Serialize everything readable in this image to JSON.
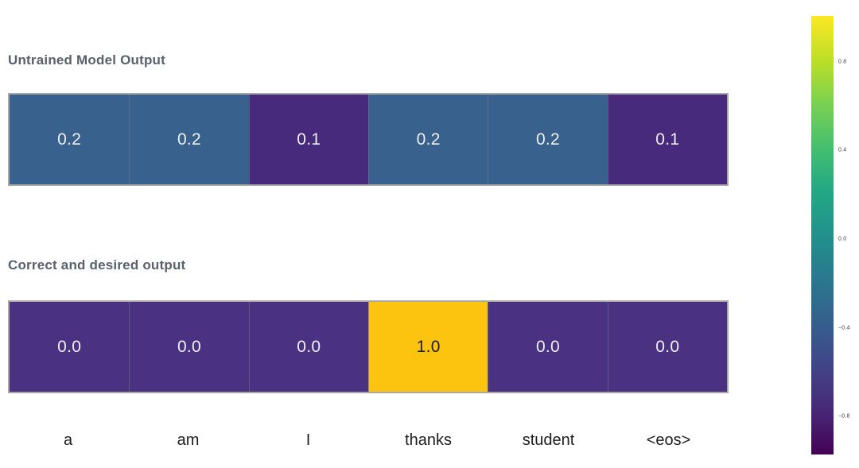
{
  "figure": {
    "background": "#ffffff"
  },
  "titles": {
    "row1": "Untrained Model Output",
    "row2": "Correct and desired output"
  },
  "rows": [
    {
      "name": "Untrained Model Output",
      "cells": [
        {
          "label": "0.2",
          "bg": "#38618e",
          "fg": "#eef0f4"
        },
        {
          "label": "0.2",
          "bg": "#38618e",
          "fg": "#eef0f4"
        },
        {
          "label": "0.1",
          "bg": "#482a7c",
          "fg": "#eef0f4"
        },
        {
          "label": "0.2",
          "bg": "#38618e",
          "fg": "#eef0f4"
        },
        {
          "label": "0.2",
          "bg": "#38618e",
          "fg": "#eef0f4"
        },
        {
          "label": "0.1",
          "bg": "#482a7c",
          "fg": "#eef0f4"
        }
      ]
    },
    {
      "name": "Correct and desired output",
      "cells": [
        {
          "label": "0.0",
          "bg": "#4a3182",
          "fg": "#eef0f4"
        },
        {
          "label": "0.0",
          "bg": "#4a3182",
          "fg": "#eef0f4"
        },
        {
          "label": "0.0",
          "bg": "#4a3182",
          "fg": "#eef0f4"
        },
        {
          "label": "1.0",
          "bg": "#fcc40e",
          "fg": "#1b1b1b"
        },
        {
          "label": "0.0",
          "bg": "#4a3182",
          "fg": "#eef0f4"
        },
        {
          "label": "0.0",
          "bg": "#4a3182",
          "fg": "#eef0f4"
        }
      ]
    }
  ],
  "x_labels": [
    "a",
    "am",
    "I",
    "thanks",
    "student",
    "<eos>"
  ],
  "colorbar": {
    "tick_labels": [
      "0.8",
      "0.4",
      "0.0",
      "−0.4",
      "−0.8"
    ],
    "gradient_top_to_bottom": [
      "#fde725",
      "#bddf26",
      "#7ad151",
      "#44bf70",
      "#22a884",
      "#21918c",
      "#2a788e",
      "#355f8d",
      "#414487",
      "#482878",
      "#440154"
    ]
  },
  "chart_data": {
    "type": "heatmap",
    "categories": [
      "a",
      "am",
      "I",
      "thanks",
      "student",
      "<eos>"
    ],
    "series": [
      {
        "name": "Untrained Model Output",
        "values": [
          0.2,
          0.2,
          0.1,
          0.2,
          0.2,
          0.1
        ]
      },
      {
        "name": "Correct and desired output",
        "values": [
          0.0,
          0.0,
          0.0,
          1.0,
          0.0,
          0.0
        ]
      }
    ],
    "colormap": "viridis",
    "colorbar_range": [
      -1,
      1
    ],
    "colorbar_ticks": [
      0.8,
      0.4,
      0.0,
      -0.4,
      -0.8
    ],
    "colorbar_position": "right",
    "grid": false
  }
}
